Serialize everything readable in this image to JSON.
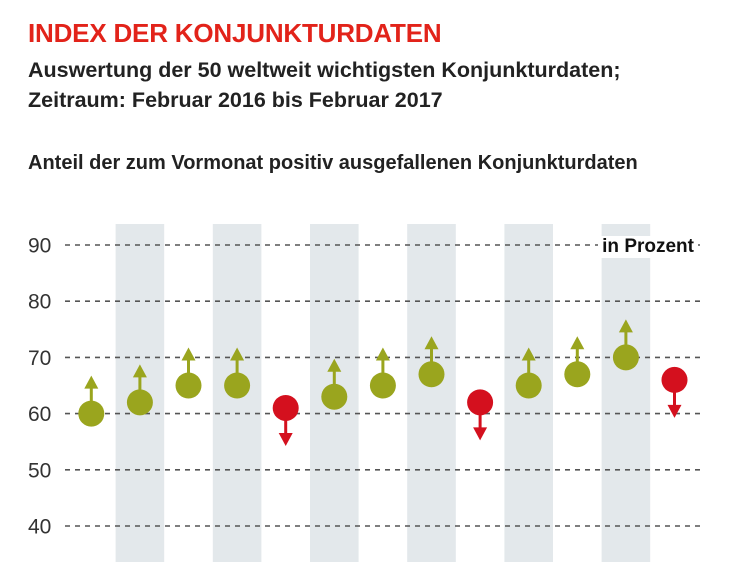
{
  "header": {
    "title": "INDEX DER KONJUNKTURDATEN",
    "subtitle_line1": "Auswertung der 50 weltweit wichtigsten Konjunkturdaten;",
    "subtitle_line2": "Zeitraum: Februar 2016 bis Februar 2017"
  },
  "colors": {
    "up": "#9aa51e",
    "down": "#d4101e",
    "band": "#e3e8eb",
    "title": "#e2231a"
  },
  "chart_data": {
    "type": "scatter",
    "title": "Anteil der zum Vormonat positiv ausgefallenen Konjunkturdaten",
    "unit_label": "in Prozent",
    "ylim": [
      40,
      90
    ],
    "yticks": [
      40,
      50,
      60,
      70,
      80,
      90
    ],
    "grid": true,
    "alternating_bands": true,
    "points": [
      {
        "value": 60,
        "direction": "up"
      },
      {
        "value": 62,
        "direction": "up"
      },
      {
        "value": 65,
        "direction": "up"
      },
      {
        "value": 65,
        "direction": "up"
      },
      {
        "value": 61,
        "direction": "down"
      },
      {
        "value": 63,
        "direction": "up"
      },
      {
        "value": 65,
        "direction": "up"
      },
      {
        "value": 67,
        "direction": "up"
      },
      {
        "value": 62,
        "direction": "down"
      },
      {
        "value": 65,
        "direction": "up"
      },
      {
        "value": 67,
        "direction": "up"
      },
      {
        "value": 70,
        "direction": "up"
      },
      {
        "value": 66,
        "direction": "down"
      }
    ]
  }
}
